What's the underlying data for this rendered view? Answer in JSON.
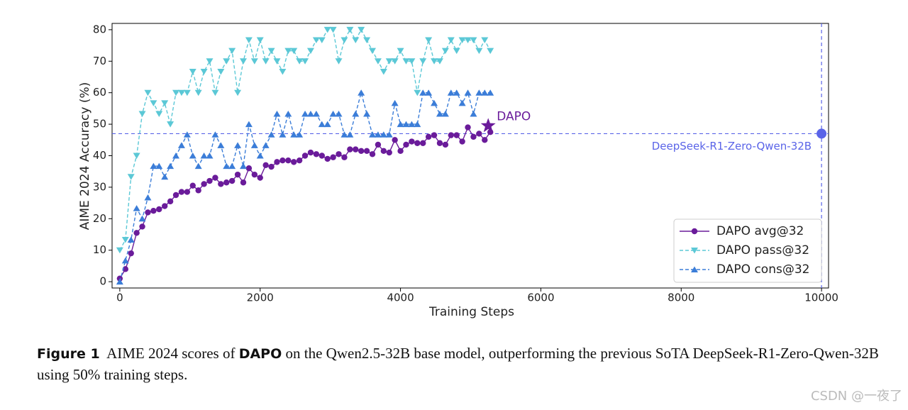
{
  "chart_data": {
    "type": "line",
    "xlabel": "Training Steps",
    "ylabel": "AIME 2024 Accuracy (%)",
    "xlim": [
      -110,
      10100
    ],
    "ylim": [
      -2,
      82
    ],
    "xticks": [
      0,
      2000,
      4000,
      6000,
      8000,
      10000
    ],
    "yticks": [
      0,
      10,
      20,
      30,
      40,
      50,
      60,
      70,
      80
    ],
    "grid": false,
    "legend": "lower right",
    "x": [
      0,
      80,
      160,
      240,
      320,
      400,
      480,
      560,
      640,
      720,
      800,
      880,
      960,
      1040,
      1120,
      1200,
      1280,
      1360,
      1440,
      1520,
      1600,
      1680,
      1760,
      1840,
      1920,
      2000,
      2080,
      2160,
      2240,
      2320,
      2400,
      2480,
      2560,
      2640,
      2720,
      2800,
      2880,
      2960,
      3040,
      3120,
      3200,
      3280,
      3360,
      3440,
      3520,
      3600,
      3680,
      3760,
      3840,
      3920,
      4000,
      4080,
      4160,
      4240,
      4320,
      4400,
      4480,
      4560,
      4640,
      4720,
      4800,
      4880,
      4960,
      5040,
      5120,
      5200,
      5280
    ],
    "series": [
      {
        "name": "DAPO avg@32",
        "color": "#6a1b9a",
        "marker": "o",
        "linestyle": "solid",
        "values": [
          1,
          4,
          9,
          15.5,
          17.5,
          22,
          22.5,
          23,
          24,
          25.5,
          27.5,
          28.5,
          28.5,
          30.5,
          29,
          31,
          32,
          33,
          31,
          31.5,
          32,
          34,
          31.5,
          36,
          34,
          33,
          37,
          36.5,
          38,
          38.5,
          38.5,
          38,
          38.5,
          40,
          41,
          40.5,
          40,
          39,
          39.5,
          40.5,
          39.5,
          42,
          42,
          41.5,
          41.5,
          40.5,
          43.5,
          41.5,
          41,
          45,
          41.5,
          43.5,
          44.5,
          44,
          44,
          46,
          46.5,
          44,
          43.5,
          46.5,
          46.5,
          44.5,
          49,
          46,
          47,
          45,
          47.5
        ]
      },
      {
        "name": "DAPO pass@32",
        "color": "#5bc8d6",
        "marker": "v",
        "linestyle": "dashed",
        "values": [
          10,
          13.3,
          33.3,
          40,
          53.3,
          60,
          56.7,
          53.3,
          56.7,
          50,
          60,
          60,
          60,
          66.7,
          60,
          66.7,
          70,
          60,
          66.7,
          70,
          73.3,
          60,
          70,
          76.7,
          70,
          76.7,
          70,
          73.3,
          70,
          66.7,
          73.3,
          73.3,
          70,
          70,
          73.3,
          76.7,
          76.7,
          80,
          80,
          70,
          76.7,
          80,
          76.7,
          80,
          76.7,
          73.3,
          70,
          66.7,
          70,
          70,
          73.3,
          70,
          70,
          60,
          70,
          76.7,
          70,
          70,
          73.3,
          76.7,
          73.3,
          76.7,
          76.7,
          76.7,
          73.3,
          76.7,
          73.3
        ]
      },
      {
        "name": "DAPO cons@32",
        "color": "#3b7dd8",
        "marker": "^",
        "linestyle": "dashed",
        "values": [
          0,
          6.7,
          13.3,
          23.3,
          20,
          26.7,
          36.7,
          36.7,
          33.3,
          36.7,
          40,
          43.3,
          46.7,
          40,
          36.7,
          40,
          40,
          46.7,
          43.3,
          36.7,
          36.7,
          43.3,
          36.7,
          50,
          43.3,
          40,
          43.3,
          46.7,
          53.3,
          46.7,
          53.3,
          46.7,
          46.7,
          53.3,
          53.3,
          53.3,
          50,
          50,
          53.3,
          53.3,
          46.7,
          46.7,
          53.3,
          60,
          53.3,
          46.7,
          46.7,
          46.7,
          46.7,
          56.7,
          50,
          50,
          50,
          50,
          60,
          60,
          56.7,
          53.3,
          53.3,
          60,
          60,
          56.7,
          60,
          53.3,
          60,
          60,
          60
        ]
      }
    ],
    "reference": {
      "value": 47,
      "x": 10000,
      "label": "DeepSeek-R1-Zero-Qwen-32B",
      "color": "#5a64e8"
    },
    "highlight": {
      "x": 5250,
      "y": 49.5,
      "label": "DAPO",
      "color": "#6a1b9a"
    }
  },
  "caption": {
    "label": "Figure 1",
    "before": "AIME 2024 scores of",
    "bold": "DAPO",
    "after": "on the Qwen2.5-32B base model, outperforming the previous SoTA DeepSeek-R1-Zero-Qwen-32B using 50% training steps."
  },
  "watermark": "CSDN @一夜了"
}
